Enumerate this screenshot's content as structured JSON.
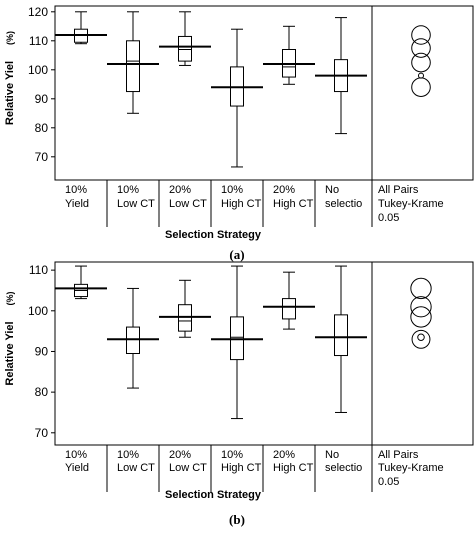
{
  "chart_data": [
    {
      "panel_label": "(a)",
      "type": "box",
      "xlabel": "Selection Strategy",
      "ylabel": "Relative Yiel (%)",
      "ylabel_text": "Relative Yiel",
      "ylabel_unit": "(%)",
      "ylim": [
        62,
        122
      ],
      "yticks": [
        70,
        80,
        90,
        100,
        110,
        120
      ],
      "categories": [
        {
          "line1": "10%",
          "line2": "Yield"
        },
        {
          "line1": "10%",
          "line2": "Low CT"
        },
        {
          "line1": "20%",
          "line2": "Low CT"
        },
        {
          "line1": "10%",
          "line2": "High CT"
        },
        {
          "line1": "20%",
          "line2": "High CT"
        },
        {
          "line1": "No",
          "line2": "selectio"
        }
      ],
      "boxes": [
        {
          "min": 109,
          "q1": 109.5,
          "median": 112,
          "q3": 114,
          "max": 120,
          "mean": 112
        },
        {
          "min": 85,
          "q1": 92.5,
          "median": 103,
          "q3": 110,
          "max": 120,
          "mean": 102
        },
        {
          "min": 101.5,
          "q1": 103,
          "median": 107,
          "q3": 111.5,
          "max": 120,
          "mean": 108
        },
        {
          "min": 66.5,
          "q1": 87.5,
          "median": 94,
          "q3": 101,
          "max": 114,
          "mean": 94
        },
        {
          "min": 95,
          "q1": 97.5,
          "median": 101,
          "q3": 107,
          "max": 115,
          "mean": 102
        },
        {
          "min": 78,
          "q1": 92.5,
          "median": 98,
          "q3": 103.5,
          "max": 118,
          "mean": 98
        }
      ],
      "comparison": {
        "label1": "All Pairs",
        "label2": "Tukey-Krame",
        "label3": "0.05",
        "circles": [
          {
            "center": 112,
            "radius": 3.2
          },
          {
            "center": 107.5,
            "radius": 3.2
          },
          {
            "center": 102.5,
            "radius": 3.2
          },
          {
            "center": 98,
            "radius": 0.8
          },
          {
            "center": 94,
            "radius": 3.2
          }
        ]
      }
    },
    {
      "panel_label": "(b)",
      "type": "box",
      "xlabel": "Selection Strategy",
      "ylabel": "Relative Yiel (%)",
      "ylabel_text": "Relative Yiel",
      "ylabel_unit": "(%)",
      "ylim": [
        67,
        112
      ],
      "yticks": [
        70,
        80,
        90,
        100,
        110
      ],
      "categories": [
        {
          "line1": "10%",
          "line2": "Yield"
        },
        {
          "line1": "10%",
          "line2": "Low CT"
        },
        {
          "line1": "20%",
          "line2": "Low CT"
        },
        {
          "line1": "10%",
          "line2": "High CT"
        },
        {
          "line1": "20%",
          "line2": "High CT"
        },
        {
          "line1": "No",
          "line2": "selectio"
        }
      ],
      "boxes": [
        {
          "min": 103,
          "q1": 103.5,
          "median": 105,
          "q3": 106.5,
          "max": 111,
          "mean": 105.5
        },
        {
          "min": 81,
          "q1": 89.5,
          "median": 93,
          "q3": 96,
          "max": 105.5,
          "mean": 93
        },
        {
          "min": 93.5,
          "q1": 95,
          "median": 97.5,
          "q3": 101.5,
          "max": 107.5,
          "mean": 98.5
        },
        {
          "min": 73.5,
          "q1": 88,
          "median": 93.5,
          "q3": 98.5,
          "max": 111,
          "mean": 93
        },
        {
          "min": 95.5,
          "q1": 98,
          "median": 101,
          "q3": 103,
          "max": 109.5,
          "mean": 101
        },
        {
          "min": 75,
          "q1": 89,
          "median": 93.5,
          "q3": 99,
          "max": 111,
          "mean": 93.5
        }
      ],
      "comparison": {
        "label1": "All Pairs",
        "label2": "Tukey-Krame",
        "label3": "0.05",
        "circles": [
          {
            "center": 105.5,
            "radius": 2.5
          },
          {
            "center": 101,
            "radius": 2.5
          },
          {
            "center": 98.5,
            "radius": 2.5
          },
          {
            "center": 93.5,
            "radius": 0.8
          },
          {
            "center": 93,
            "radius": 2.2
          }
        ]
      }
    }
  ]
}
